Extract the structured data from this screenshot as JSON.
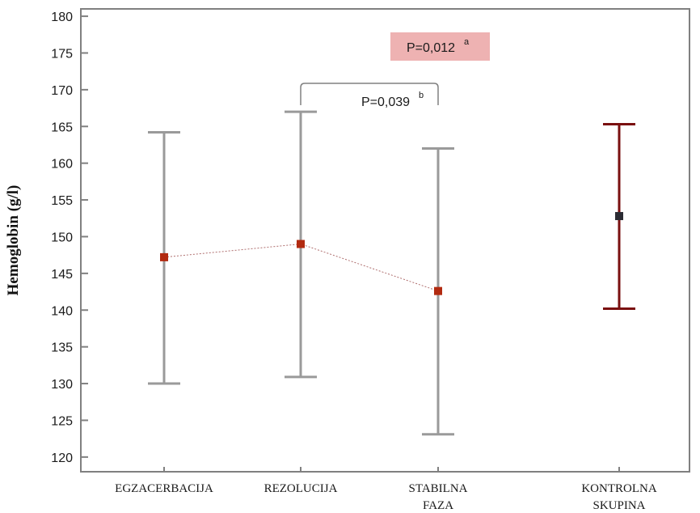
{
  "chart_data": {
    "type": "scatter",
    "subtype": "error-bar",
    "title": "",
    "ylabel": "Hemoglobin (g/l)",
    "xlabel": "",
    "ylim": [
      118,
      181
    ],
    "yticks": [
      120,
      125,
      130,
      135,
      140,
      145,
      150,
      155,
      160,
      165,
      170,
      175,
      180
    ],
    "grid": false,
    "categories": [
      {
        "label": [
          "EGZACERBACIJA"
        ]
      },
      {
        "label": [
          "REZOLUCIJA"
        ]
      },
      {
        "label": [
          "STABILNA",
          "FAZA"
        ]
      },
      {
        "label": [
          "KONTROLNA",
          "SKUPINA"
        ]
      }
    ],
    "groups": [
      {
        "category": "EGZACERBACIJA",
        "mean": 147.2,
        "low": 130.0,
        "high": 164.2,
        "color": "#9a9a9a",
        "marker_color": "#b22a10"
      },
      {
        "category": "REZOLUCIJA",
        "mean": 149.0,
        "low": 130.9,
        "high": 167.0,
        "color": "#9a9a9a",
        "marker_color": "#b22a10"
      },
      {
        "category": "STABILNA FAZA",
        "mean": 142.6,
        "low": 123.1,
        "high": 162.0,
        "color": "#9a9a9a",
        "marker_color": "#b22a10"
      },
      {
        "category": "KONTROLNA SKUPINA",
        "mean": 152.8,
        "low": 140.2,
        "high": 165.3,
        "color": "#7a1010",
        "marker_color": "#2b2b33"
      }
    ],
    "connect_means": [
      "EGZACERBACIJA",
      "REZOLUCIJA",
      "STABILNA FAZA"
    ],
    "connect_color": "#b07070",
    "annotations": [
      {
        "id": "p1",
        "text": "P=0,012",
        "superscript": "a",
        "highlight": "#eeb2b2"
      },
      {
        "id": "p2",
        "text": "P=0,039",
        "superscript": "b",
        "bracket_between": [
          "REZOLUCIJA",
          "STABILNA FAZA"
        ]
      }
    ]
  }
}
